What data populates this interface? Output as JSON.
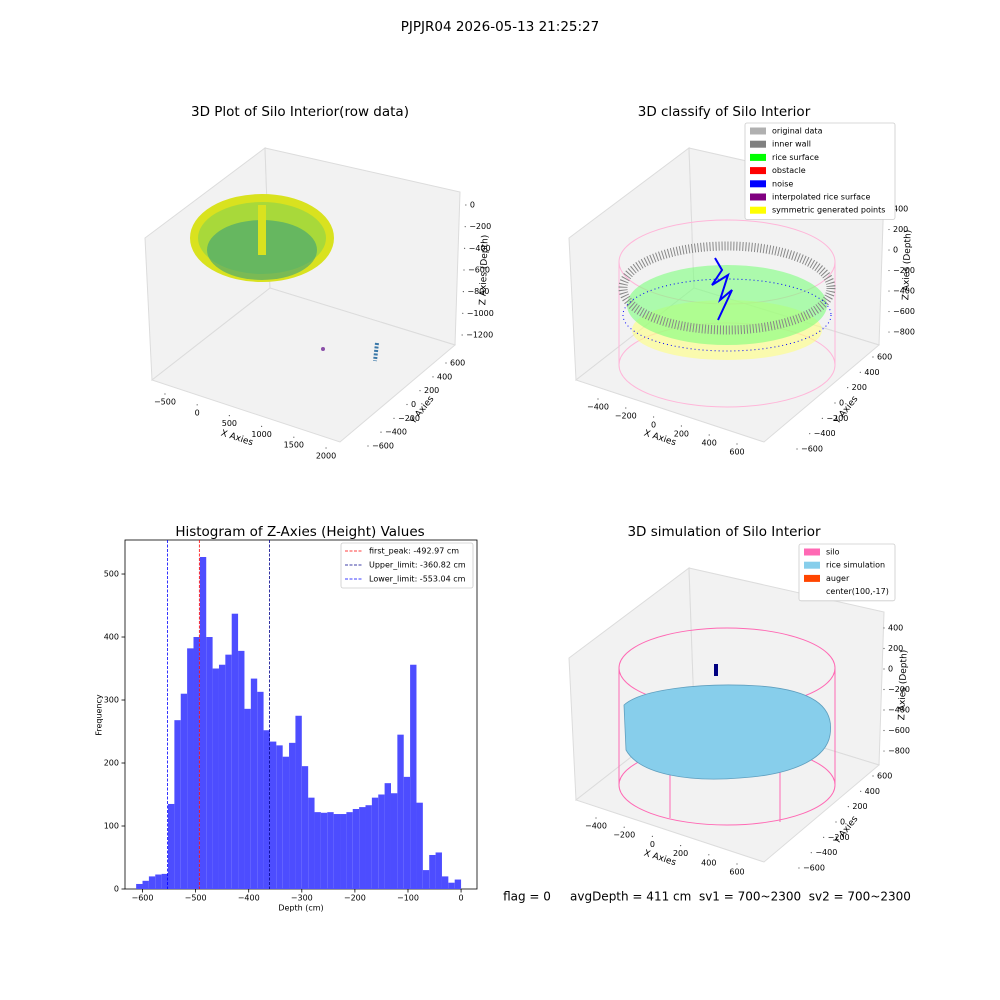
{
  "suptitle": "PJPJR04 2026-05-13 21:25:27",
  "footer": "flag = 0     avgDepth = 411 cm  sv1 = 700~2300  sv2 = 700~2300",
  "chart_data": [
    {
      "type": "scatter3d",
      "title": "3D Plot of Silo Interior(row data)",
      "xlabel": "X Axies",
      "ylabel": "Y Axies",
      "zlabel": "Z Axies (Depth)",
      "xlim": [
        -650,
        2150
      ],
      "ylim": [
        -700,
        700
      ],
      "zlim": [
        -1250,
        50
      ],
      "xticks": [
        {
          "value": -500,
          "label": "−500"
        },
        0,
        500,
        1000,
        1500,
        2000
      ],
      "yticks": [
        {
          "value": -600,
          "label": "−600"
        },
        {
          "value": -400,
          "label": "−400"
        },
        {
          "value": -200,
          "label": "−200"
        },
        0,
        200,
        400,
        600
      ],
      "zticks": [
        {
          "value": -1200,
          "label": "−1200"
        },
        {
          "value": -1000,
          "label": "−1000"
        },
        {
          "value": -800,
          "label": "−800"
        },
        {
          "value": -600,
          "label": "−600"
        },
        {
          "value": -400,
          "label": "−400"
        },
        {
          "value": -200,
          "label": "−200"
        },
        0
      ]
    },
    {
      "type": "scatter3d",
      "title": "3D classify of Silo Interior",
      "xlabel": "X Axies",
      "ylabel": "Y Axies",
      "zlabel": "Z Axies (Depth)",
      "xlim": [
        -500,
        700
      ],
      "ylim": [
        -700,
        700
      ],
      "zlim": [
        -900,
        500
      ],
      "xticks": [
        {
          "value": -400,
          "label": "−400"
        },
        {
          "value": -200,
          "label": "−200"
        },
        0,
        200,
        400,
        600
      ],
      "yticks": [
        {
          "value": -600,
          "label": "−600"
        },
        {
          "value": -400,
          "label": "−400"
        },
        {
          "value": -200,
          "label": "−200"
        },
        0,
        200,
        400,
        600
      ],
      "zticks": [
        {
          "value": -800,
          "label": "−800"
        },
        {
          "value": -600,
          "label": "−600"
        },
        {
          "value": -400,
          "label": "−400"
        },
        {
          "value": -200,
          "label": "−200"
        },
        0,
        200,
        400
      ],
      "legend": [
        {
          "name": "original data",
          "color": "#b0b0b0"
        },
        {
          "name": "inner wall",
          "color": "#808080"
        },
        {
          "name": "rice surface",
          "color": "#00ff00"
        },
        {
          "name": "obstacle",
          "color": "#ff0000"
        },
        {
          "name": "noise",
          "color": "#0000ff"
        },
        {
          "name": "interpolated rice surface",
          "color": "#800080"
        },
        {
          "name": "symmetric generated points",
          "color": "#ffff00"
        }
      ]
    },
    {
      "type": "histogram",
      "title": "Histogram of Z-Axies (Height) Values",
      "xlabel": "Depth (cm)",
      "ylabel": "Frequency",
      "color": "#4d4dff",
      "bins": [
        -612,
        -600,
        -588,
        -576,
        -564,
        -552,
        -540,
        -528,
        -516,
        -504,
        -492,
        -480,
        -468,
        -456,
        -444,
        -432,
        -420,
        -408,
        -396,
        -384,
        -372,
        -360,
        -348,
        -336,
        -324,
        -312,
        -300,
        -288,
        -276,
        -264,
        -252,
        -240,
        -228,
        -216,
        -204,
        -192,
        -180,
        -168,
        -156,
        -144,
        -132,
        -120,
        -108,
        -96,
        -84,
        -72,
        -60,
        -48,
        -36,
        -24,
        -12,
        0
      ],
      "counts": [
        8,
        13,
        20,
        23,
        24,
        135,
        268,
        310,
        382,
        400,
        527,
        400,
        350,
        356,
        372,
        437,
        378,
        286,
        334,
        313,
        252,
        234,
        228,
        210,
        232,
        275,
        195,
        145,
        122,
        121,
        122,
        119,
        119,
        122,
        127,
        130,
        133,
        145,
        150,
        168,
        152,
        245,
        178,
        356,
        137,
        30,
        54,
        58,
        20,
        10,
        15
      ],
      "xlim": [
        -633,
        30
      ],
      "ylim": [
        0,
        554
      ],
      "xticks": [
        {
          "value": -600,
          "label": "−600"
        },
        {
          "value": -500,
          "label": "−500"
        },
        {
          "value": -400,
          "label": "−400"
        },
        {
          "value": -300,
          "label": "−300"
        },
        {
          "value": -200,
          "label": "−200"
        },
        {
          "value": -100,
          "label": "−100"
        },
        0
      ],
      "yticks": [
        0,
        100,
        200,
        300,
        400,
        500
      ],
      "vlines": [
        {
          "label": "first_peak: -492.97 cm",
          "value": -492.97,
          "color": "#ff0000"
        },
        {
          "label": "Upper_limit: -360.82 cm",
          "value": -360.82,
          "color": "#00008b"
        },
        {
          "label": "Lower_limit: -553.04 cm",
          "value": -553.04,
          "color": "#0000ff"
        }
      ]
    },
    {
      "type": "surface3d",
      "title": "3D simulation of Silo Interior",
      "xlabel": "X Axies",
      "ylabel": "Y Axies",
      "zlabel": "Z Axies (Depth)",
      "xlim": [
        -500,
        700
      ],
      "ylim": [
        -700,
        700
      ],
      "zlim": [
        -900,
        500
      ],
      "xticks": [
        {
          "value": -400,
          "label": "−400"
        },
        {
          "value": -200,
          "label": "−200"
        },
        0,
        200,
        400,
        600
      ],
      "yticks": [
        {
          "value": -600,
          "label": "−600"
        },
        {
          "value": -400,
          "label": "−400"
        },
        {
          "value": -200,
          "label": "−200"
        },
        0,
        200,
        400,
        600
      ],
      "zticks": [
        {
          "value": -800,
          "label": "−800"
        },
        {
          "value": -600,
          "label": "−600"
        },
        {
          "value": -400,
          "label": "−400"
        },
        {
          "value": -200,
          "label": "−200"
        },
        0,
        200,
        400
      ],
      "legend": [
        {
          "name": "silo",
          "color": "#ff69b4"
        },
        {
          "name": "rice simulation",
          "color": "#87ceeb"
        },
        {
          "name": "auger",
          "color": "#ff4500"
        },
        {
          "name": "center(100,-17)",
          "color": null
        }
      ]
    }
  ]
}
